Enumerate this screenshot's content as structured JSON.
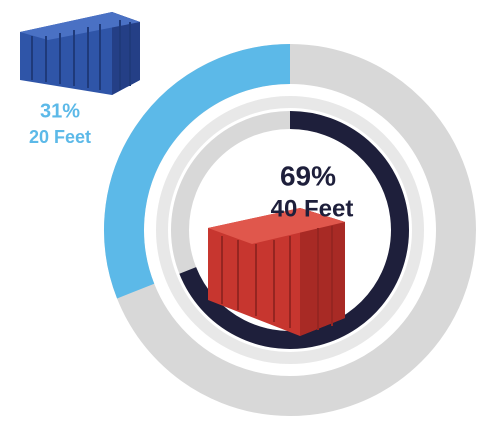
{
  "chart_data": {
    "type": "donut",
    "categories": [
      "20 Feet",
      "40 Feet"
    ],
    "values": [
      31,
      69
    ],
    "value_labels": [
      "31%",
      "69%"
    ],
    "colors": [
      "#5cb9e8",
      "#1e1f3b"
    ],
    "track_color": "#d8d8d8"
  }
}
